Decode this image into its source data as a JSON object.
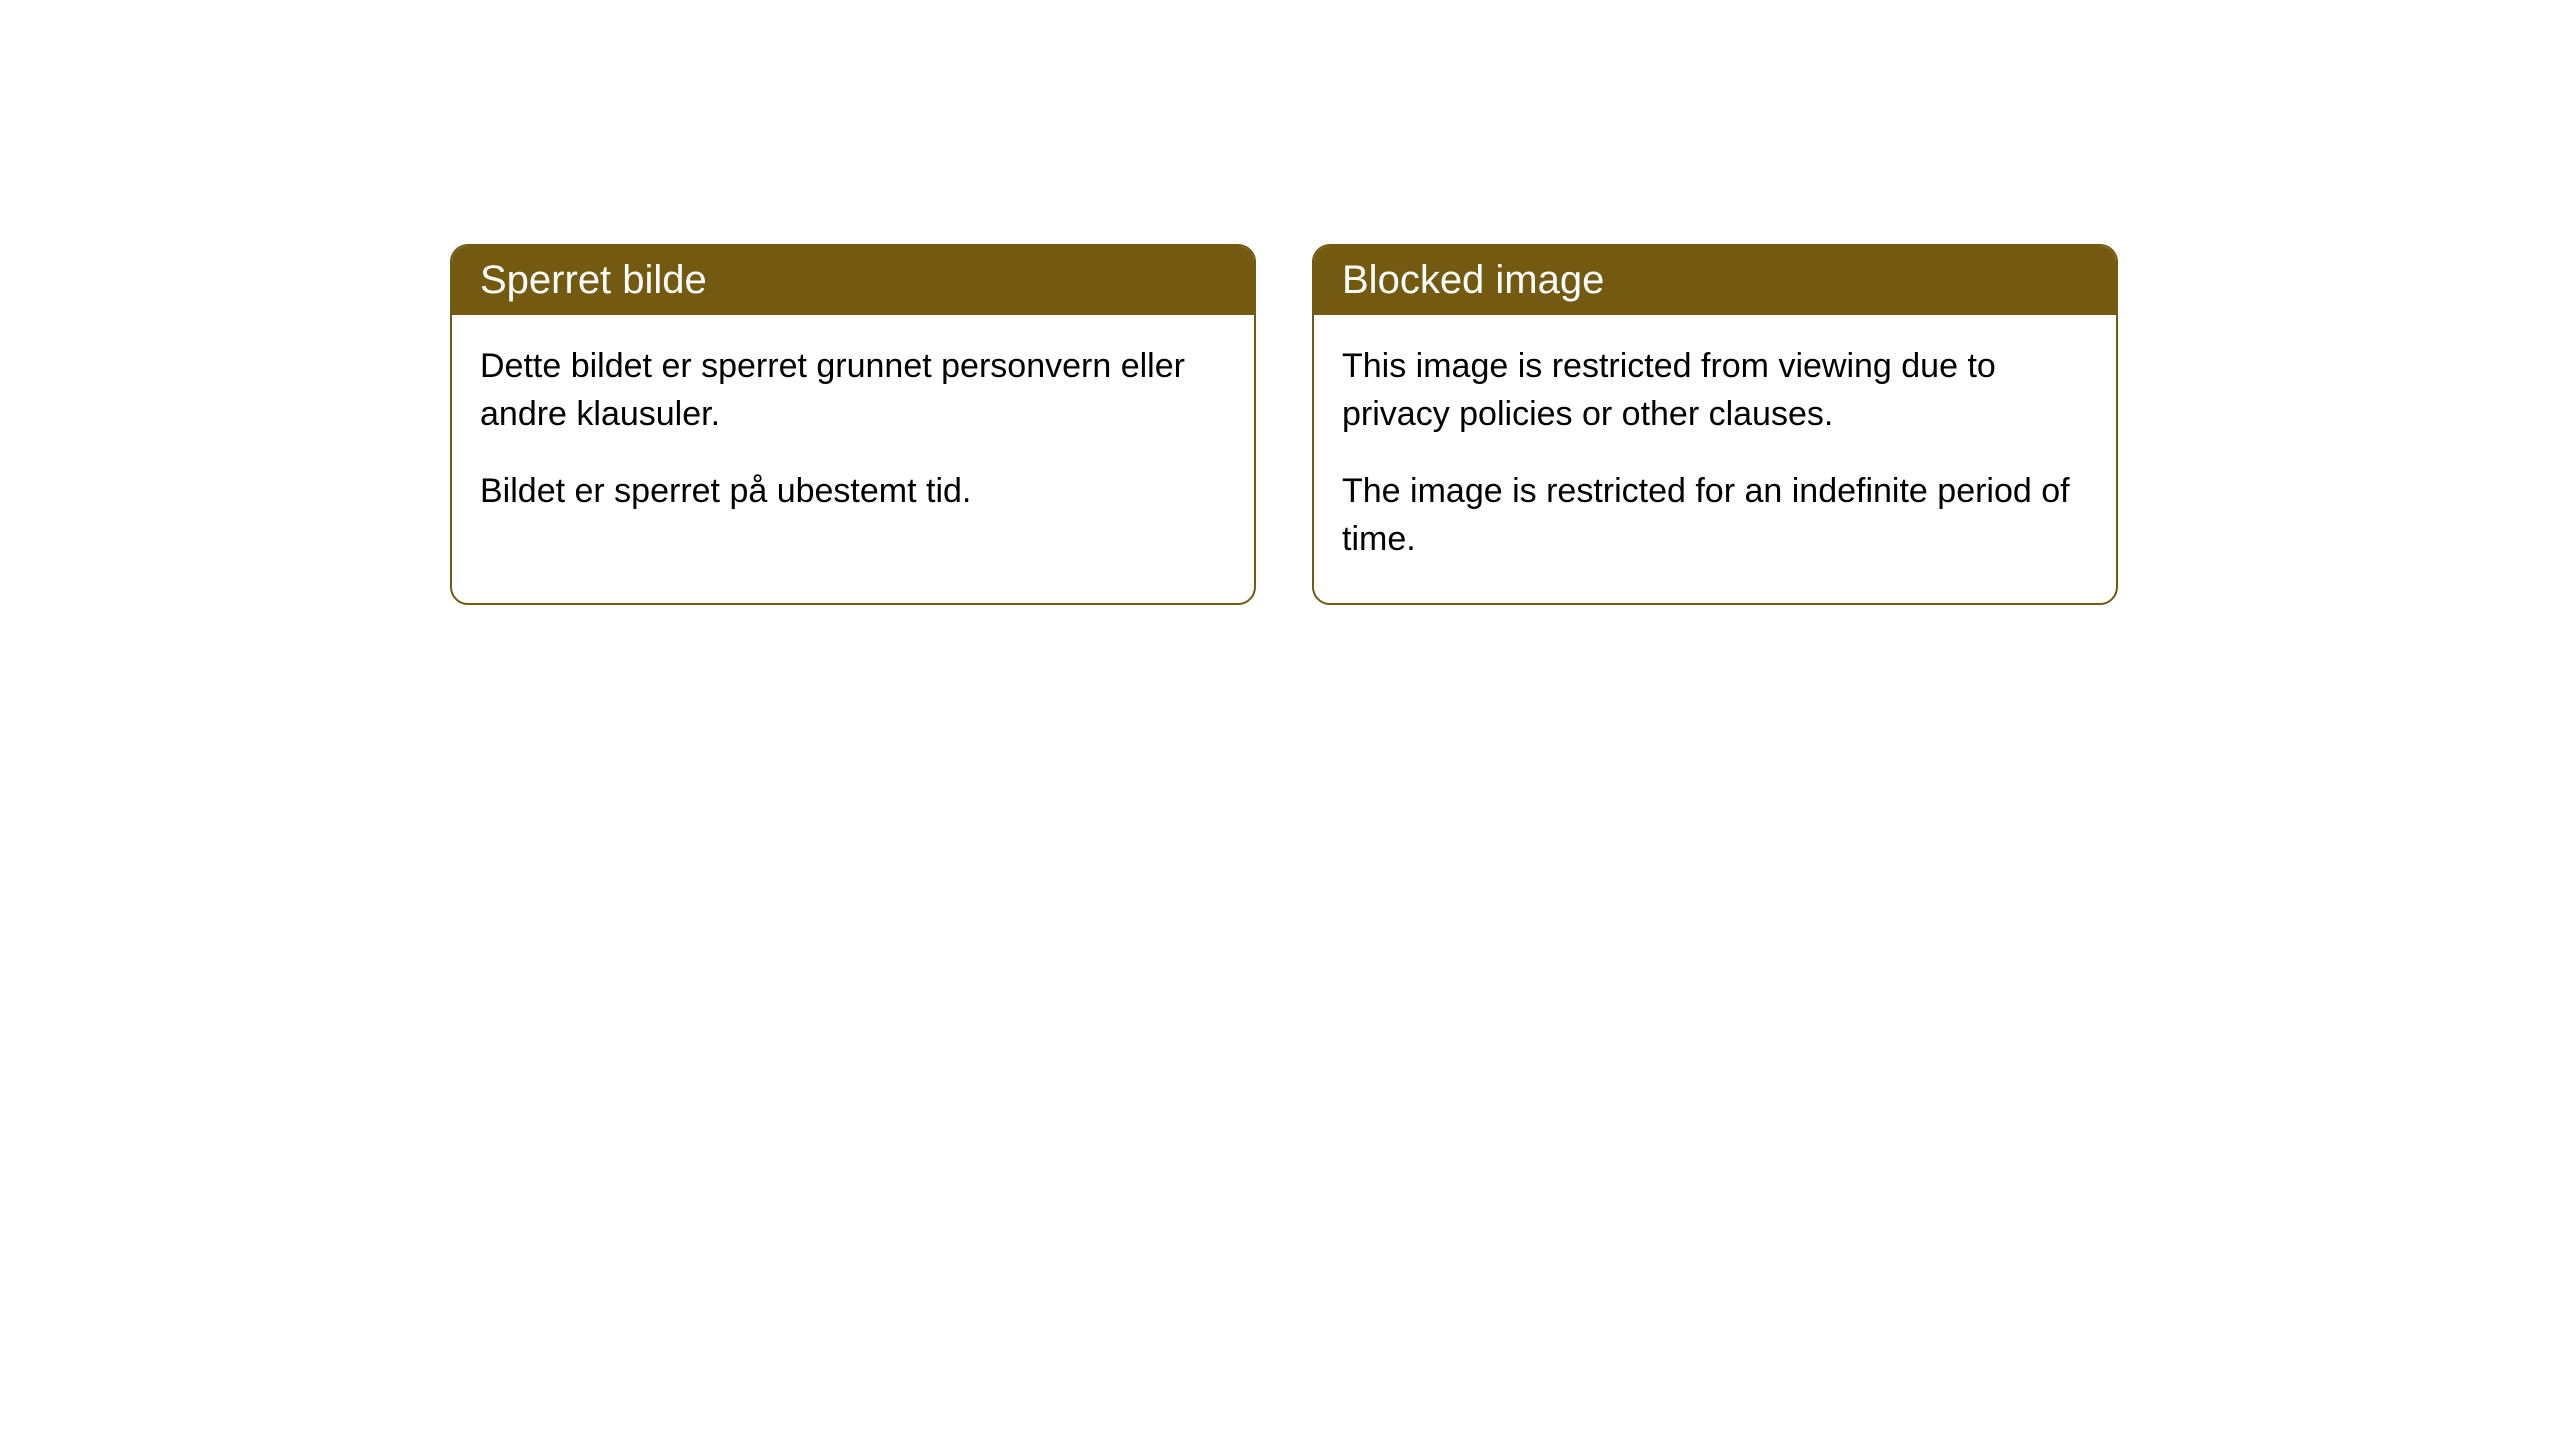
{
  "notices": [
    {
      "title": "Sperret bilde",
      "paragraph1": "Dette bildet er sperret grunnet personvern eller andre klausuler.",
      "paragraph2": "Bildet er sperret på ubestemt tid."
    },
    {
      "title": "Blocked image",
      "paragraph1": "This image is restricted from viewing due to privacy policies or other clauses.",
      "paragraph2": "The image is restricted for an indefinite period of time."
    }
  ],
  "styling": {
    "header_bg_color": "#745911",
    "header_text_color": "#ffffff",
    "border_color": "#745911",
    "body_bg_color": "#ffffff",
    "body_text_color": "#000000",
    "border_radius": 18,
    "header_fontsize": 40,
    "body_fontsize": 34
  }
}
